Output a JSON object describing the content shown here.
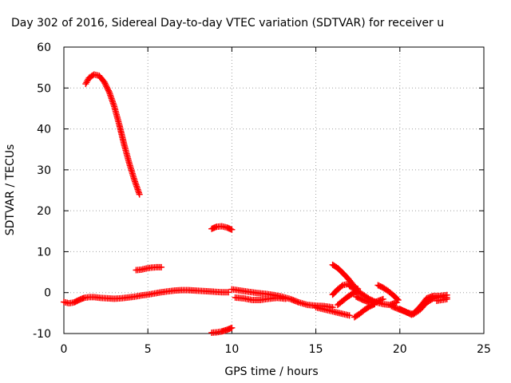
{
  "chart_data": {
    "type": "scatter",
    "title": "Day 302 of 2016, Sidereal Day-to-day VTEC variation (SDTVAR) for receiver u",
    "xlabel": "GPS time / hours",
    "ylabel": "SDTVAR / TECUs",
    "xlim": [
      0,
      25
    ],
    "ylim": [
      -10,
      60
    ],
    "xticks": [
      0,
      5,
      10,
      15,
      20,
      25
    ],
    "yticks": [
      -10,
      0,
      10,
      20,
      30,
      40,
      50,
      60
    ],
    "grid": true,
    "marker": "plus",
    "color": "#ff0000",
    "segments": [
      {
        "x": [
          0.0,
          0.3,
          0.6,
          0.9,
          1.2,
          1.5,
          1.8,
          2.2,
          2.6,
          3.0,
          3.4,
          3.8,
          4.2,
          4.6,
          5.0,
          5.4,
          5.8,
          6.2,
          6.6,
          7.0,
          7.4,
          7.8,
          8.2,
          8.6,
          9.0,
          9.4,
          9.8
        ],
        "y": [
          -2.3,
          -2.6,
          -2.4,
          -1.8,
          -1.3,
          -1.1,
          -1.1,
          -1.3,
          -1.4,
          -1.5,
          -1.4,
          -1.2,
          -1.0,
          -0.7,
          -0.5,
          -0.2,
          0.1,
          0.3,
          0.5,
          0.6,
          0.6,
          0.5,
          0.4,
          0.3,
          0.2,
          0.1,
          0.1
        ]
      },
      {
        "x": [
          1.3,
          1.5,
          1.8,
          2.1,
          2.4,
          2.7,
          3.0,
          3.3,
          3.6,
          3.9,
          4.2,
          4.5
        ],
        "y": [
          51.0,
          52.5,
          53.3,
          53.0,
          51.5,
          49.0,
          45.5,
          41.0,
          36.0,
          31.5,
          27.5,
          24.0
        ]
      },
      {
        "x": [
          4.3,
          4.6,
          4.9,
          5.2,
          5.5,
          5.8
        ],
        "y": [
          5.5,
          5.6,
          5.9,
          6.1,
          6.2,
          6.2
        ]
      },
      {
        "x": [
          8.8,
          9.1,
          9.4,
          9.7,
          10.0
        ],
        "y": [
          15.6,
          16.1,
          16.2,
          15.9,
          15.4
        ]
      },
      {
        "x": [
          8.8,
          9.1,
          9.4,
          9.7,
          10.0
        ],
        "y": [
          -9.8,
          -9.7,
          -9.5,
          -9.1,
          -8.6
        ]
      },
      {
        "x": [
          10.0,
          10.5,
          11.0,
          11.5,
          12.0,
          12.5,
          13.0,
          13.5,
          14.0,
          14.5,
          15.0,
          15.5,
          16.0
        ],
        "y": [
          0.8,
          0.5,
          0.2,
          -0.1,
          -0.3,
          -0.6,
          -1.0,
          -1.6,
          -2.4,
          -3.0,
          -3.2,
          -3.3,
          -3.6
        ]
      },
      {
        "x": [
          10.2,
          10.7,
          11.2,
          11.7,
          12.2,
          12.7,
          13.2
        ],
        "y": [
          -1.2,
          -1.4,
          -1.8,
          -1.8,
          -1.5,
          -1.3,
          -1.5
        ]
      },
      {
        "x": [
          15.0,
          15.4,
          15.8,
          16.2,
          16.6,
          17.0
        ],
        "y": [
          -3.6,
          -4.0,
          -4.4,
          -4.8,
          -5.2,
          -5.6
        ]
      },
      {
        "x": [
          16.0,
          16.3,
          16.6,
          16.9,
          17.2
        ],
        "y": [
          6.8,
          6.0,
          4.8,
          3.5,
          2.0
        ]
      },
      {
        "x": [
          16.0,
          16.3,
          16.6,
          16.9,
          17.2,
          17.5
        ],
        "y": [
          -0.5,
          0.8,
          1.8,
          2.1,
          1.6,
          0.9
        ]
      },
      {
        "x": [
          16.3,
          16.6,
          16.9,
          17.2,
          17.5
        ],
        "y": [
          -3.0,
          -2.0,
          -1.0,
          -0.2,
          0.4
        ]
      },
      {
        "x": [
          17.3,
          17.6,
          17.9,
          18.2,
          18.5
        ],
        "y": [
          -6.0,
          -5.2,
          -4.2,
          -3.4,
          -2.8
        ]
      },
      {
        "x": [
          17.0,
          17.4,
          17.8,
          18.2,
          18.6,
          19.0,
          19.4,
          19.8
        ],
        "y": [
          1.6,
          0.6,
          -0.5,
          -1.6,
          -2.4,
          -2.8,
          -3.0,
          -2.4
        ]
      },
      {
        "x": [
          17.4,
          17.8,
          18.2,
          18.6,
          19.0
        ],
        "y": [
          -1.0,
          -1.8,
          -2.4,
          -2.2,
          -1.6
        ]
      },
      {
        "x": [
          18.7,
          19.0,
          19.3,
          19.6,
          19.9
        ],
        "y": [
          1.8,
          1.2,
          0.4,
          -0.6,
          -1.8
        ]
      },
      {
        "x": [
          19.5,
          19.9,
          20.3,
          20.7,
          21.0,
          21.3,
          21.6,
          22.0,
          22.4,
          22.8
        ],
        "y": [
          -3.3,
          -4.0,
          -4.6,
          -5.4,
          -4.4,
          -3.0,
          -1.4,
          -0.8,
          -0.8,
          -0.6
        ]
      },
      {
        "x": [
          20.0,
          20.4,
          20.8,
          21.2,
          21.6,
          22.0,
          22.4,
          22.8
        ],
        "y": [
          -4.0,
          -4.8,
          -5.3,
          -4.2,
          -2.4,
          -1.4,
          -1.0,
          -1.2
        ]
      },
      {
        "x": [
          22.2,
          22.5,
          22.8
        ],
        "y": [
          -2.0,
          -1.8,
          -1.6
        ]
      }
    ]
  }
}
